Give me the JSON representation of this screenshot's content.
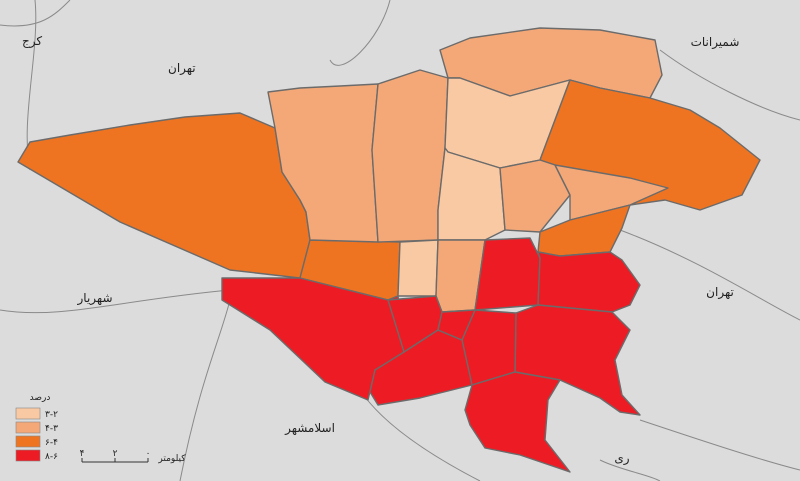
{
  "cities": {
    "karaj": "کرج",
    "tehran_nw": "تهران",
    "shemiranat": "شمیرانات",
    "shahriar": "شهریار",
    "tehran_e": "تهران",
    "eslamshahr": "اسلامشهر",
    "rey": "ری"
  },
  "legend": {
    "title": "درصد",
    "items": [
      {
        "label": "۳-۲",
        "color": "#f8c9a3"
      },
      {
        "label": "۴-۳",
        "color": "#f4a877"
      },
      {
        "label": "۶-۴",
        "color": "#ee7421"
      },
      {
        "label": "۸-۶",
        "color": "#ed1c24"
      }
    ]
  },
  "scale": {
    "unit": "کیلومتر",
    "ticks": [
      "۴",
      "۲",
      "۰"
    ]
  }
}
